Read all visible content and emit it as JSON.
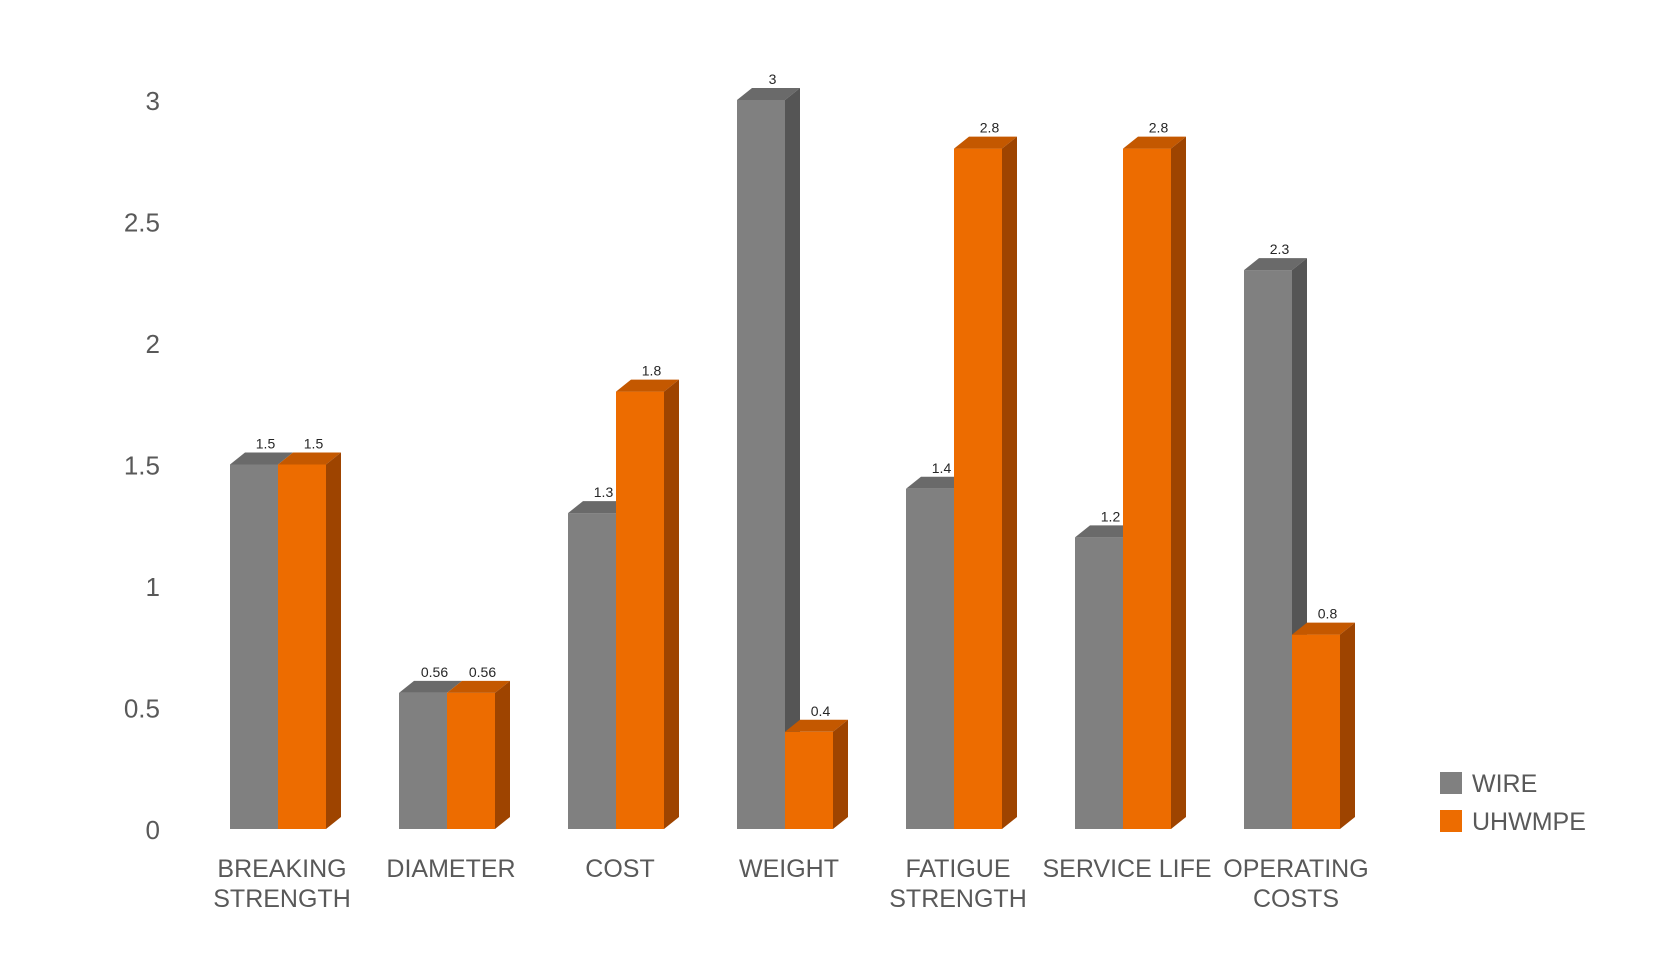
{
  "chart_data": {
    "type": "bar",
    "title": "",
    "xlabel": "",
    "ylabel": "",
    "categories": [
      [
        "BREAKING",
        "STRENGTH"
      ],
      [
        "DIAMETER"
      ],
      [
        "COST"
      ],
      [
        "WEIGHT"
      ],
      [
        "FATIGUE",
        "STRENGTH"
      ],
      [
        "SERVICE LIFE"
      ],
      [
        "OPERATING",
        "COSTS"
      ]
    ],
    "series": [
      {
        "name": "WIRE",
        "color": "#808080",
        "side_color": "#555555",
        "top_color": "#6a6a6a",
        "values": [
          1.5,
          0.56,
          1.3,
          3,
          1.4,
          1.2,
          2.3
        ],
        "labels": [
          "1.5",
          "0.56",
          "1.3",
          "3",
          "1.4",
          "1.2",
          "2.3"
        ]
      },
      {
        "name": "UHWMPE",
        "color": "#ed6c00",
        "side_color": "#9e4400",
        "top_color": "#c45800",
        "values": [
          1.5,
          0.56,
          1.8,
          0.4,
          2.8,
          2.8,
          0.8
        ],
        "labels": [
          "1.5",
          "0.56",
          "1.8",
          "0.4",
          "2.8",
          "2.8",
          "0.8"
        ]
      }
    ],
    "yticks": [
      "0",
      "0.5",
      "1",
      "1.5",
      "2",
      "2.5",
      "3"
    ],
    "ylim": [
      0,
      3
    ],
    "grid": false,
    "legend_position": "right"
  }
}
